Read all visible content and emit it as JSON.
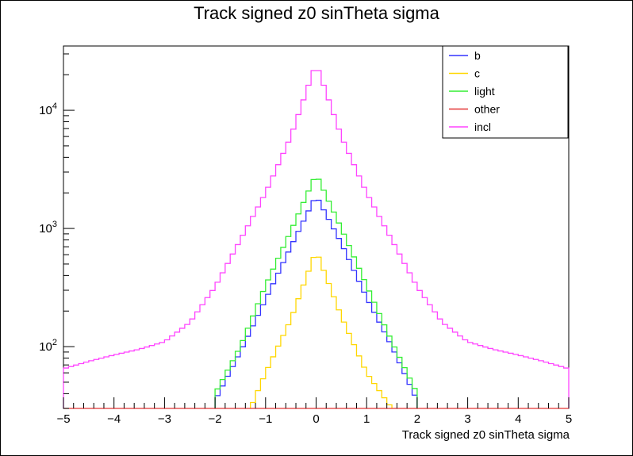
{
  "chart_data": {
    "type": "line",
    "title": "Track signed z0 sinTheta sigma",
    "xlabel": "Track signed z0 sinTheta sigma",
    "ylabel": "",
    "xlim": [
      -5,
      5
    ],
    "ylim": [
      30,
      35000
    ],
    "yscale": "log",
    "grid": false,
    "legend_position": "top-right",
    "x_ticks": [
      "-5",
      "-4",
      "-3",
      "-2",
      "-1",
      "0",
      "1",
      "2",
      "3",
      "4",
      "5"
    ],
    "y_ticks": [
      {
        "base": "10",
        "exp": "2",
        "value": 100
      },
      {
        "base": "10",
        "exp": "3",
        "value": 1000
      },
      {
        "base": "10",
        "exp": "4",
        "value": 10000
      }
    ],
    "series": [
      {
        "name": "b",
        "color": "#3333ff",
        "x": [
          -2.0,
          -1.5,
          -1.0,
          -0.5,
          0.0,
          0.5,
          1.0,
          1.5,
          2.0
        ],
        "y": [
          35,
          90,
          250,
          700,
          1900,
          750,
          260,
          100,
          35
        ]
      },
      {
        "name": "c",
        "color": "#ffd700",
        "x": [
          -1.3,
          -1.0,
          -0.5,
          0.0,
          0.5,
          1.0,
          1.5
        ],
        "y": [
          30,
          60,
          170,
          650,
          180,
          60,
          30
        ]
      },
      {
        "name": "light",
        "color": "#33ee33",
        "x": [
          -2.0,
          -1.5,
          -1.0,
          -0.5,
          0.0,
          0.5,
          1.0,
          1.5,
          2.0
        ],
        "y": [
          40,
          100,
          330,
          950,
          2900,
          1000,
          330,
          110,
          40
        ]
      },
      {
        "name": "other",
        "color": "#e33333",
        "x": [
          -5,
          5
        ],
        "y": [
          30,
          30
        ]
      },
      {
        "name": "incl",
        "color": "#ff44ff",
        "x": [
          -5.0,
          -4.5,
          -4.0,
          -3.5,
          -3.0,
          -2.5,
          -2.0,
          -1.5,
          -1.0,
          -0.5,
          0.0,
          0.5,
          1.0,
          1.5,
          2.0,
          2.5,
          3.0,
          3.5,
          4.0,
          4.5,
          5.0
        ],
        "y": [
          65,
          75,
          85,
          95,
          110,
          160,
          320,
          800,
          2000,
          6000,
          25000,
          6000,
          2000,
          800,
          320,
          160,
          110,
          95,
          85,
          75,
          65
        ]
      }
    ]
  }
}
